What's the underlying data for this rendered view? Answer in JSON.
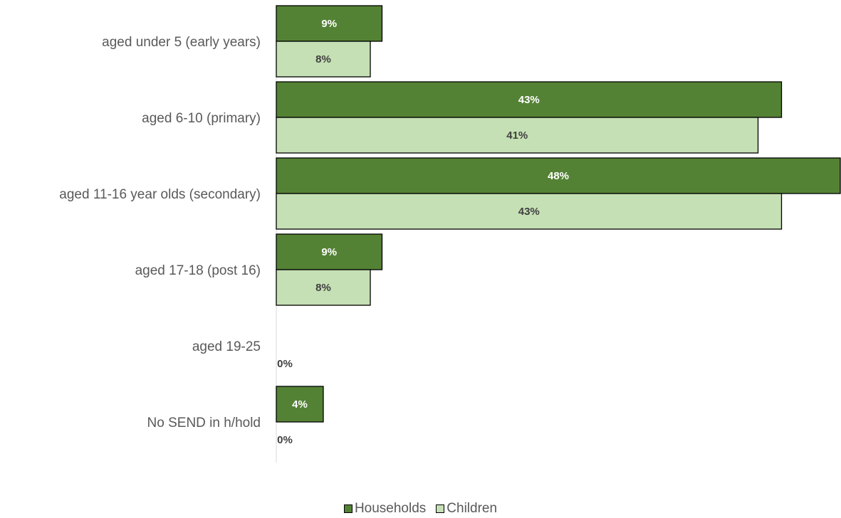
{
  "chart_data": {
    "type": "bar",
    "orientation": "horizontal",
    "categories": [
      "aged under 5 (early years)",
      "aged 6-10 (primary)",
      "aged 11-16 year olds (secondary)",
      "aged 17-18 (post 16)",
      "aged 19-25",
      "No SEND in h/hold"
    ],
    "series": [
      {
        "name": "Households",
        "values": [
          9,
          43,
          48,
          9,
          null,
          4
        ],
        "labels": [
          "9%",
          "43%",
          "48%",
          "9%",
          "",
          "4%"
        ],
        "color": "#548235",
        "label_color": "#ffffff"
      },
      {
        "name": "Children",
        "values": [
          8,
          41,
          43,
          8,
          0,
          0
        ],
        "labels": [
          "8%",
          "41%",
          "43%",
          "8%",
          "0%",
          "0%"
        ],
        "color": "#c5e0b4",
        "label_color": "#404040"
      }
    ],
    "xlim": [
      0,
      48
    ],
    "legend_position": "bottom",
    "grid": false
  }
}
